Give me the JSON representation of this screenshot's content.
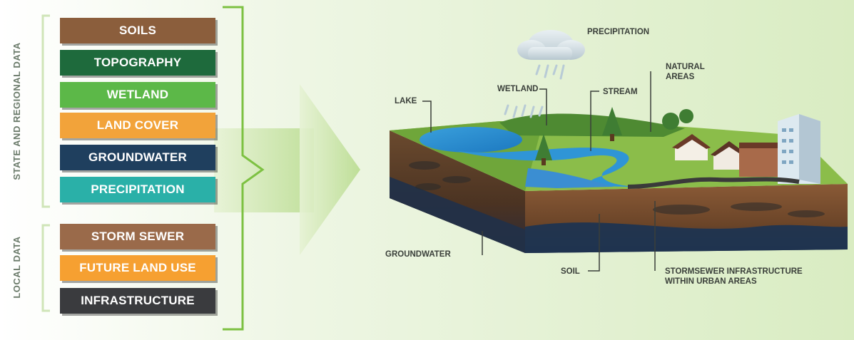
{
  "side_labels": {
    "state_regional": "STATE AND REGIONAL DATA",
    "local": "LOCAL DATA"
  },
  "state_regional_layers": [
    {
      "label": "SOILS",
      "color": "#8b5e3c"
    },
    {
      "label": "TOPOGRAPHY",
      "color": "#1e6a3c"
    },
    {
      "label": "WETLAND",
      "color": "#5cb848"
    },
    {
      "label": "LAND COVER",
      "color": "#f2a33a"
    },
    {
      "label": "GROUNDWATER",
      "color": "#1f3f5e"
    },
    {
      "label": "PRECIPITATION",
      "color": "#2ab0a8"
    }
  ],
  "local_layers": [
    {
      "label": "STORM SEWER",
      "color": "#9a6a4a"
    },
    {
      "label": "FUTURE LAND USE",
      "color": "#f6a031"
    },
    {
      "label": "INFRASTRUCTURE",
      "color": "#3a3b3e"
    }
  ],
  "diagram_labels": {
    "precipitation": "PRECIPITATION",
    "lake": "LAKE",
    "wetland": "WETLAND",
    "stream": "STREAM",
    "natural_areas_1": "NATURAL",
    "natural_areas_2": "AREAS",
    "groundwater": "GROUNDWATER",
    "soil": "SOIL",
    "stormsewer_1": "STORMSEWER INFRASTRUCTURE",
    "stormsewer_2": "WITHIN URBAN AREAS"
  },
  "colors": {
    "bracket": "#7dc142",
    "arrow": "#c5e3a3"
  }
}
